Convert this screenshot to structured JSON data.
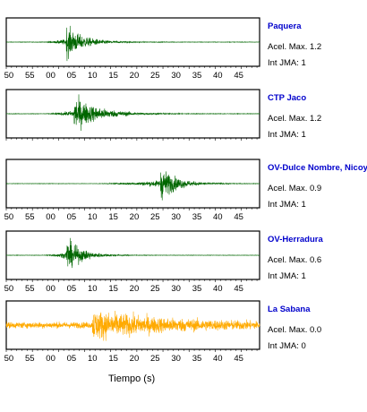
{
  "chart_data": {
    "type": "line",
    "xlabel": "Tiempo (s)",
    "xticks": [
      "50",
      "55",
      "00",
      "05",
      "10",
      "15",
      "20",
      "25",
      "30",
      "35",
      "40",
      "45"
    ],
    "acc_label": "Acel. Max.",
    "jma_label": "Int JMA:",
    "panels": [
      {
        "station": "Paquera",
        "acel_max": "1.2",
        "int_jma": "1",
        "color": "#006600",
        "onset": 6.5,
        "peak": 11.5,
        "amp": 0.85,
        "noise": 0.012,
        "decay": 3.2,
        "show_ticks": true
      },
      {
        "station": "CTP Jaco",
        "acel_max": "1.2",
        "int_jma": "1",
        "color": "#006600",
        "onset": 7.0,
        "peak": 13.0,
        "amp": 0.9,
        "noise": 0.012,
        "decay": 4.5,
        "show_ticks": false
      },
      {
        "station": "OV-Dulce Nombre, Nicoya",
        "acel_max": "0.9",
        "int_jma": "1",
        "color": "#006600",
        "onset": 16.5,
        "peak": 29.5,
        "amp": 0.9,
        "noise": 0.01,
        "decay": 3.0,
        "show_ticks": true
      },
      {
        "station": "OV-Herradura",
        "acel_max": "0.6",
        "int_jma": "1",
        "color": "#006600",
        "onset": 6.5,
        "peak": 11.5,
        "amp": 0.9,
        "noise": 0.01,
        "decay": 2.8,
        "show_ticks": true
      },
      {
        "station": "La Sabana",
        "acel_max": "0.0",
        "int_jma": "0",
        "color": "#ffaa00",
        "onset": 16.5,
        "peak": 16.5,
        "amp": 0.65,
        "noise": 0.16,
        "decay": 14.0,
        "show_ticks": true
      }
    ]
  }
}
